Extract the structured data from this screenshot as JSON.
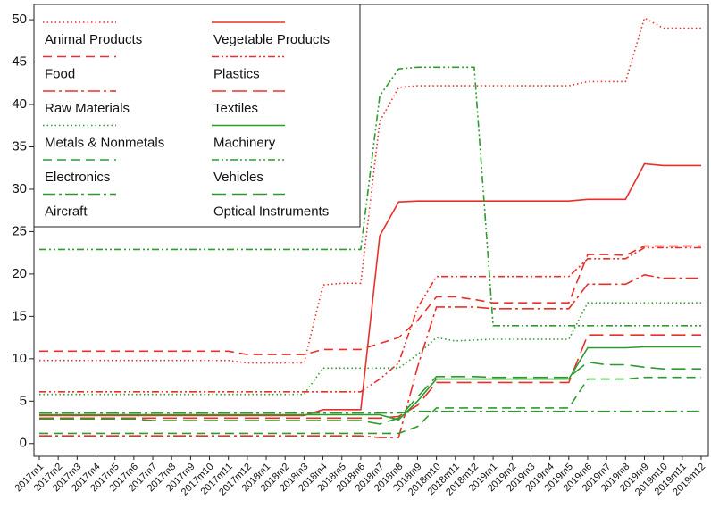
{
  "chart_data": {
    "type": "line",
    "categories": [
      "2017m1",
      "2017m2",
      "2017m3",
      "2017m4",
      "2017m5",
      "2017m6",
      "2017m7",
      "2017m8",
      "2017m9",
      "2017m10",
      "2017m11",
      "2017m12",
      "2018m1",
      "2018m2",
      "2018m3",
      "2018m4",
      "2018m5",
      "2018m6",
      "2018m7",
      "2018m8",
      "2018m9",
      "2018m10",
      "2018m11",
      "2018m12",
      "2019m1",
      "2019m2",
      "2019m3",
      "2019m4",
      "2019m5",
      "2019m6",
      "2019m7",
      "2019m8",
      "2019m9",
      "2019m10",
      "2019m11",
      "2019m12"
    ],
    "ylim": [
      -1.5,
      51.8
    ],
    "yticks": [
      0,
      5,
      10,
      15,
      20,
      25,
      30,
      35,
      40,
      45,
      50
    ],
    "grid": false,
    "legend": "top-left",
    "series": [
      {
        "name": "Animal Products",
        "color": "#e8302b",
        "dash": "dotted",
        "values": [
          9.8,
          9.8,
          9.8,
          9.8,
          9.8,
          9.8,
          9.8,
          9.8,
          9.8,
          9.8,
          9.8,
          9.5,
          9.5,
          9.5,
          9.5,
          18.7,
          18.9,
          18.9,
          38,
          42,
          42.2,
          42.2,
          42.2,
          42.2,
          42.2,
          42.2,
          42.2,
          42.2,
          42.2,
          42.7,
          42.7,
          42.7,
          50.2,
          49,
          49,
          49
        ]
      },
      {
        "name": "Vegetable Products",
        "color": "#e8302b",
        "dash": "solid",
        "values": [
          3.3,
          3.3,
          3.3,
          3.3,
          3.3,
          3.3,
          3.3,
          3.3,
          3.3,
          3.3,
          3.3,
          3.3,
          3.3,
          3.3,
          3.3,
          4.0,
          4.0,
          4.0,
          24.5,
          28.5,
          28.6,
          28.6,
          28.6,
          28.6,
          28.6,
          28.6,
          28.6,
          28.6,
          28.6,
          28.8,
          28.8,
          28.8,
          33,
          32.8,
          32.8,
          32.8
        ]
      },
      {
        "name": "Food",
        "color": "#e8302b",
        "dash": "dashed",
        "values": [
          10.9,
          10.9,
          10.9,
          10.9,
          10.9,
          10.9,
          10.9,
          10.9,
          10.9,
          10.9,
          10.9,
          10.5,
          10.5,
          10.5,
          10.5,
          11.1,
          11.1,
          11.1,
          11.8,
          12.5,
          14.5,
          17.3,
          17.3,
          17.0,
          16.6,
          16.6,
          16.6,
          16.6,
          16.6,
          22.3,
          22.3,
          22.2,
          23.3,
          23.3,
          23.3,
          23.3
        ]
      },
      {
        "name": "Plastics",
        "color": "#e8302b",
        "dash": "dashdotdot",
        "values": [
          6.1,
          6.1,
          6.1,
          6.1,
          6.1,
          6.1,
          6.1,
          6.1,
          6.1,
          6.1,
          6.1,
          6.1,
          6.1,
          6.1,
          6.1,
          6.1,
          6.1,
          6.1,
          7.6,
          9.5,
          16,
          19.7,
          19.7,
          19.7,
          19.7,
          19.7,
          19.7,
          19.7,
          19.7,
          21.8,
          21.8,
          21.8,
          23.1,
          23.1,
          23.1,
          23.1
        ]
      },
      {
        "name": "Raw Materials",
        "color": "#e8302b",
        "dash": "longdashdot",
        "values": [
          0.9,
          0.9,
          0.9,
          0.9,
          0.9,
          0.9,
          0.9,
          0.9,
          0.9,
          0.9,
          0.9,
          0.9,
          0.9,
          0.9,
          0.9,
          0.9,
          0.9,
          0.9,
          0.7,
          0.7,
          9,
          16.1,
          16.1,
          16.1,
          15.9,
          15.9,
          15.9,
          15.9,
          15.9,
          18.8,
          18.8,
          18.8,
          19.9,
          19.5,
          19.5,
          19.5
        ]
      },
      {
        "name": "Textiles",
        "color": "#e8302b",
        "dash": "longdash",
        "values": [
          3.0,
          3.0,
          3.0,
          3.0,
          3.0,
          3.0,
          3.0,
          3.0,
          3.0,
          3.0,
          3.0,
          3.0,
          3.0,
          3.0,
          3.0,
          3.0,
          3.0,
          3.0,
          3.0,
          3.2,
          4.5,
          7.2,
          7.2,
          7.2,
          7.2,
          7.2,
          7.2,
          7.2,
          7.2,
          12.8,
          12.8,
          12.8,
          12.8,
          12.8,
          12.8,
          12.8
        ]
      },
      {
        "name": "Metals & Nonmetals",
        "color": "#2e9b2e",
        "dash": "dotted",
        "values": [
          5.8,
          5.8,
          5.8,
          5.8,
          5.8,
          5.8,
          5.8,
          5.8,
          5.8,
          5.8,
          5.8,
          5.8,
          5.8,
          5.8,
          5.8,
          8.9,
          8.9,
          8.9,
          8.9,
          8.9,
          10.5,
          12.5,
          12.1,
          12.2,
          12.3,
          12.3,
          12.3,
          12.3,
          12.3,
          16.6,
          16.6,
          16.6,
          16.6,
          16.6,
          16.6,
          16.6
        ]
      },
      {
        "name": "Machinery",
        "color": "#2e9b2e",
        "dash": "solid",
        "values": [
          3.4,
          3.4,
          3.4,
          3.4,
          3.4,
          3.4,
          3.4,
          3.4,
          3.4,
          3.4,
          3.4,
          3.4,
          3.4,
          3.4,
          3.4,
          3.4,
          3.4,
          3.4,
          3.4,
          2.8,
          5,
          7.6,
          7.6,
          7.6,
          7.6,
          7.6,
          7.6,
          7.6,
          7.6,
          11.3,
          11.3,
          11.3,
          11.4,
          11.4,
          11.4,
          11.4
        ]
      },
      {
        "name": "Electronics",
        "color": "#2e9b2e",
        "dash": "dashed",
        "values": [
          1.2,
          1.2,
          1.2,
          1.2,
          1.2,
          1.2,
          1.2,
          1.2,
          1.2,
          1.2,
          1.2,
          1.2,
          1.2,
          1.2,
          1.2,
          1.2,
          1.2,
          1.2,
          1.2,
          1.2,
          2,
          4.2,
          4.2,
          4.2,
          4.2,
          4.2,
          4.2,
          4.2,
          4.2,
          7.6,
          7.6,
          7.6,
          7.8,
          7.8,
          7.8,
          7.8
        ]
      },
      {
        "name": "Vehicles",
        "color": "#2e9b2e",
        "dash": "dashdotdot",
        "values": [
          22.9,
          22.9,
          22.9,
          22.9,
          22.9,
          22.9,
          22.9,
          22.9,
          22.9,
          22.9,
          22.9,
          22.9,
          22.9,
          22.9,
          22.9,
          22.9,
          22.9,
          22.9,
          41,
          44.2,
          44.4,
          44.4,
          44.4,
          44.4,
          13.9,
          13.9,
          13.9,
          13.9,
          13.9,
          13.9,
          13.9,
          13.9,
          13.9,
          13.9,
          13.9,
          13.9
        ]
      },
      {
        "name": "Aircraft",
        "color": "#2e9b2e",
        "dash": "longdashdot",
        "values": [
          3.6,
          3.6,
          3.6,
          3.6,
          3.6,
          3.6,
          3.6,
          3.6,
          3.6,
          3.6,
          3.6,
          3.6,
          3.6,
          3.6,
          3.6,
          3.6,
          3.6,
          3.6,
          3.6,
          3.6,
          3.8,
          3.8,
          3.8,
          3.8,
          3.8,
          3.8,
          3.8,
          3.8,
          3.8,
          3.8,
          3.8,
          3.8,
          3.8,
          3.8,
          3.8,
          3.8
        ]
      },
      {
        "name": "Optical Instruments",
        "color": "#2e9b2e",
        "dash": "longdash",
        "values": [
          2.9,
          2.9,
          2.9,
          2.9,
          2.9,
          2.9,
          2.7,
          2.7,
          2.7,
          2.7,
          2.7,
          2.7,
          2.7,
          2.7,
          2.7,
          2.7,
          2.7,
          2.7,
          2.3,
          3.0,
          5.5,
          7.9,
          7.9,
          7.9,
          7.8,
          7.8,
          7.8,
          7.8,
          7.8,
          9.6,
          9.3,
          9.3,
          9.0,
          8.8,
          8.8,
          8.8
        ]
      }
    ]
  }
}
